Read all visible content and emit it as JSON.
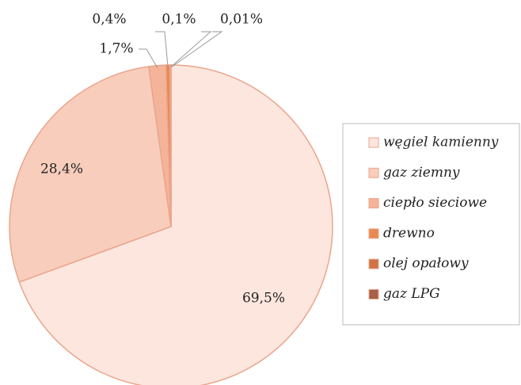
{
  "chart_data": {
    "type": "pie",
    "categories": [
      "węgiel kamienny",
      "gaz ziemny",
      "ciepło sieciowe",
      "drewno",
      "olej opałowy",
      "gaz LPG"
    ],
    "values": [
      69.5,
      28.4,
      1.7,
      0.4,
      0.1,
      0.01
    ],
    "value_labels": [
      "69,5%",
      "28,4%",
      "1,7%",
      "0,4%",
      "0,1%",
      "0,01%"
    ],
    "colors": [
      "#fce6de",
      "#f8cdbb",
      "#f4b49a",
      "#e98a50",
      "#cf7344",
      "#a7604a"
    ],
    "legend": "right"
  }
}
